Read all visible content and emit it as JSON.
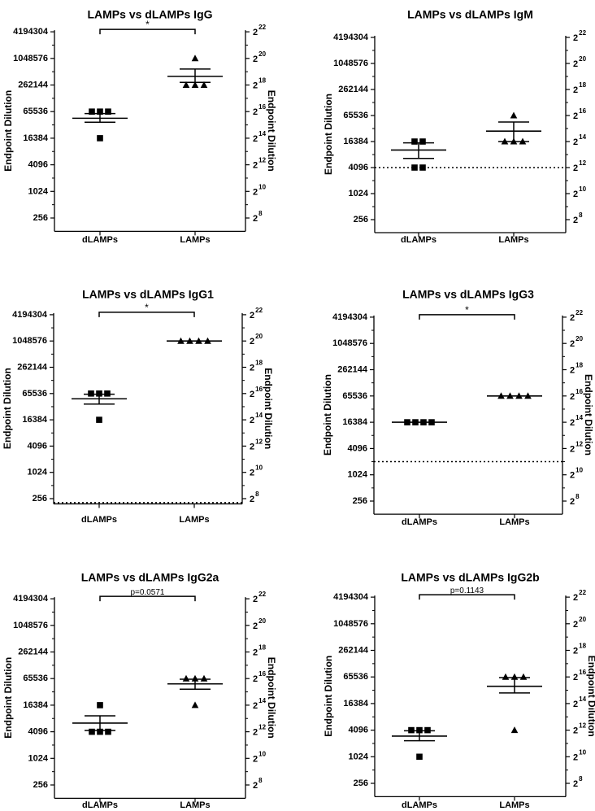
{
  "chart_data": [
    {
      "type": "scatter",
      "title": "LAMPs vs dLAMPs IgG",
      "ylabel": "Endpoint Dilution",
      "y2label": "Endpoint Dilution",
      "categories": [
        "dLAMPs",
        "LAMPs"
      ],
      "yscale": "log2",
      "ylim_log2": [
        7,
        22
      ],
      "yticks": [
        "256",
        "1024",
        "4096",
        "16384",
        "65536",
        "262144",
        "1048576",
        "4194304"
      ],
      "y2ticks": [
        8,
        10,
        12,
        14,
        16,
        18,
        20,
        22
      ],
      "y2_base": "2",
      "series": [
        {
          "category": "dLAMPs",
          "marker": "square",
          "points_log2": [
            16,
            16,
            16,
            14
          ],
          "mean_log2": 15.5,
          "sem_log2": [
            15.2,
            15.85
          ]
        },
        {
          "category": "LAMPs",
          "marker": "triangle",
          "points_log2": [
            18,
            18,
            18,
            20
          ],
          "mean_log2": 18.65,
          "sem_log2": [
            18.2,
            19.2
          ]
        }
      ],
      "significance": "*",
      "threshold_log2": null
    },
    {
      "type": "scatter",
      "title": "LAMPs vs dLAMPs IgM",
      "ylabel": "Endpoint Dilution",
      "y2label": "",
      "categories": [
        "dLAMPs",
        "LAMPs"
      ],
      "yscale": "log2",
      "ylim_log2": [
        7,
        22
      ],
      "yticks": [
        "256",
        "1024",
        "4096",
        "16384",
        "65536",
        "262144",
        "1048576",
        "4194304"
      ],
      "y2ticks": [
        8,
        10,
        12,
        14,
        16,
        18,
        20,
        22
      ],
      "y2_base": "2",
      "series": [
        {
          "category": "dLAMPs",
          "marker": "square",
          "points_log2": [
            14,
            14,
            12,
            12
          ],
          "mean_log2": 13.35,
          "sem_log2": [
            12.7,
            13.9
          ]
        },
        {
          "category": "LAMPs",
          "marker": "triangle",
          "points_log2": [
            14,
            14,
            14,
            16
          ],
          "mean_log2": 14.8,
          "sem_log2": [
            14.0,
            15.5
          ]
        }
      ],
      "significance": "",
      "threshold_log2": 12
    },
    {
      "type": "scatter",
      "title": "LAMPs vs dLAMPs IgG1",
      "ylabel": "Endpoint Dilution",
      "y2label": "Endpoint Dilution",
      "categories": [
        "dLAMPs",
        "LAMPs"
      ],
      "yscale": "log2",
      "ylim_log2": [
        7.6,
        22
      ],
      "yticks": [
        "256",
        "1024",
        "4096",
        "16384",
        "65536",
        "262144",
        "1048576",
        "4194304"
      ],
      "y2ticks": [
        8,
        10,
        12,
        14,
        16,
        18,
        20,
        22
      ],
      "y2_base": "2",
      "series": [
        {
          "category": "dLAMPs",
          "marker": "square",
          "points_log2": [
            16,
            16,
            16,
            14
          ],
          "mean_log2": 15.6,
          "sem_log2": [
            15.2,
            15.95
          ]
        },
        {
          "category": "LAMPs",
          "marker": "triangle",
          "points_log2": [
            20,
            20,
            20,
            20
          ],
          "mean_log2": 20,
          "sem_log2": [
            20,
            20
          ]
        }
      ],
      "significance": "*",
      "threshold_log2": 7.7
    },
    {
      "type": "scatter",
      "title": "LAMPs vs dLAMPs IgG3",
      "ylabel": "Endpoint Dilution",
      "y2label": "Endpoint Dilution",
      "categories": [
        "dLAMPs",
        "LAMPs"
      ],
      "yscale": "log2",
      "ylim_log2": [
        7,
        22
      ],
      "yticks": [
        "256",
        "1024",
        "4096",
        "16384",
        "65536",
        "262144",
        "1048576",
        "4194304"
      ],
      "y2ticks": [
        8,
        10,
        12,
        14,
        16,
        18,
        20,
        22
      ],
      "y2_base": "2",
      "series": [
        {
          "category": "dLAMPs",
          "marker": "square",
          "points_log2": [
            14,
            14,
            14,
            14
          ],
          "mean_log2": 14,
          "sem_log2": [
            14,
            14
          ]
        },
        {
          "category": "LAMPs",
          "marker": "triangle",
          "points_log2": [
            16,
            16,
            16,
            16
          ],
          "mean_log2": 16,
          "sem_log2": [
            16,
            16
          ]
        }
      ],
      "significance": "*",
      "threshold_log2": 11
    },
    {
      "type": "scatter",
      "title": "LAMPs vs dLAMPs IgG2a",
      "ylabel": "Endpoint Dilution",
      "y2label": "Endpoint Dilution",
      "categories": [
        "dLAMPs",
        "LAMPs"
      ],
      "yscale": "log2",
      "ylim_log2": [
        7,
        22
      ],
      "yticks": [
        "256",
        "1024",
        "4096",
        "16384",
        "65536",
        "262144",
        "1048576",
        "4194304"
      ],
      "y2ticks": [
        8,
        10,
        12,
        14,
        16,
        18,
        20,
        22
      ],
      "y2_base": "2",
      "series": [
        {
          "category": "dLAMPs",
          "marker": "square",
          "points_log2": [
            12,
            12,
            12,
            14
          ],
          "mean_log2": 12.65,
          "sem_log2": [
            12.1,
            13.2
          ]
        },
        {
          "category": "LAMPs",
          "marker": "triangle",
          "points_log2": [
            16,
            16,
            16,
            14
          ],
          "mean_log2": 15.6,
          "sem_log2": [
            15.2,
            15.95
          ]
        }
      ],
      "significance": "p=0.0571",
      "threshold_log2": null
    },
    {
      "type": "scatter",
      "title": "LAMPs vs dLAMPs IgG2b",
      "ylabel": "Endpoint Dilution",
      "y2label": "Endpoint Dilution",
      "categories": [
        "dLAMPs",
        "LAMPs"
      ],
      "yscale": "log2",
      "ylim_log2": [
        7,
        22
      ],
      "yticks": [
        "256",
        "1024",
        "4096",
        "16384",
        "65536",
        "262144",
        "1048576",
        "4194304"
      ],
      "y2ticks": [
        8,
        10,
        12,
        14,
        16,
        18,
        20,
        22
      ],
      "y2_base": "2",
      "series": [
        {
          "category": "dLAMPs",
          "marker": "square",
          "points_log2": [
            12,
            12,
            12,
            10
          ],
          "mean_log2": 11.55,
          "sem_log2": [
            11.2,
            11.95
          ]
        },
        {
          "category": "LAMPs",
          "marker": "triangle",
          "points_log2": [
            16,
            16,
            16,
            12
          ],
          "mean_log2": 15.3,
          "sem_log2": [
            14.8,
            15.95
          ]
        }
      ],
      "significance": "p=0.1143",
      "threshold_log2": null
    }
  ]
}
